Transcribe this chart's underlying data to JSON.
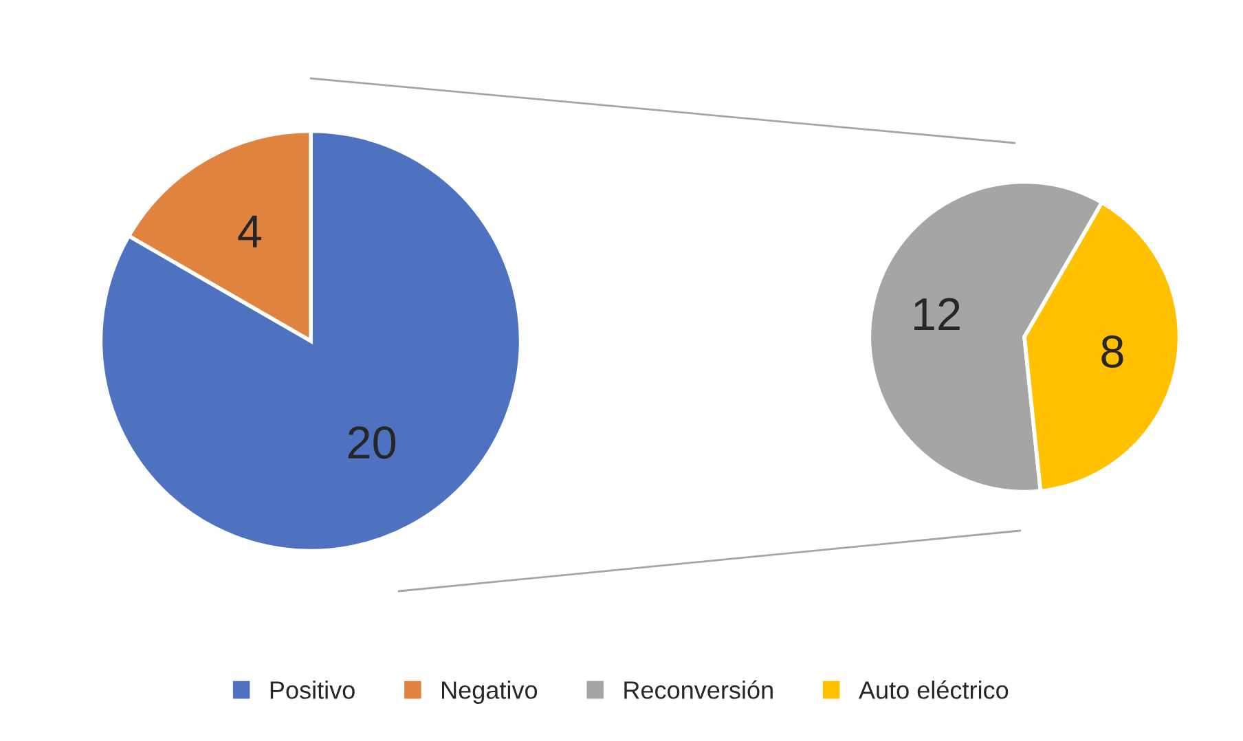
{
  "chart_data": [
    {
      "type": "pie",
      "categories": [
        "Positivo",
        "Negativo"
      ],
      "values": [
        20,
        4
      ],
      "colors": [
        "#4e71c0",
        "#e0833f"
      ],
      "data_labels": true,
      "legend": "bottom"
    },
    {
      "type": "pie",
      "categories": [
        "Reconversión",
        "Auto eléctrico"
      ],
      "values": [
        12,
        8
      ],
      "colors": [
        "#a5a5a5",
        "#ffc000"
      ],
      "data_labels": true,
      "legend": "bottom"
    }
  ]
}
